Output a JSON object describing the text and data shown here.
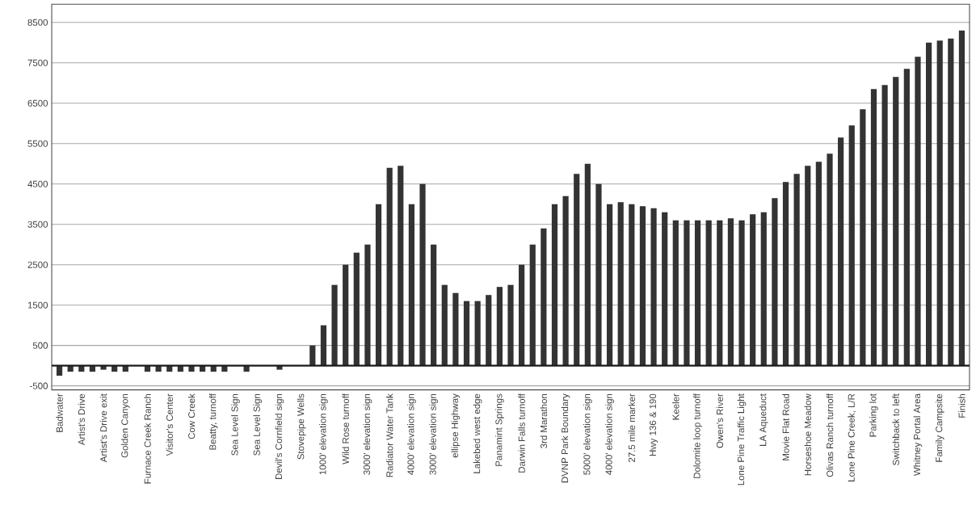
{
  "chart_data": {
    "type": "bar",
    "categories": [
      "Badwater",
      null,
      "Artist's Drive",
      null,
      "Artist's Drive exit",
      null,
      "Golden Canyon",
      null,
      "Furnace Creek Ranch",
      null,
      "Visitor's Center",
      null,
      "Cow Creek",
      null,
      "Beatty, turnoff",
      null,
      "Sea Level Sign",
      null,
      "Sea Level Sign",
      null,
      "Devil's Cornfield sign",
      null,
      "Stovepipe Wells",
      null,
      "1000' elevation sign",
      null,
      "Wild Rose turnoff",
      null,
      "3000' elevation sign",
      null,
      "Radiator Water Tank",
      null,
      "4000' elevation sign",
      null,
      "3000' elevation sign",
      null,
      "ellipse Highway",
      null,
      "Lakebed west edge",
      null,
      "Panamint Springs",
      null,
      "Darwin Falls turnoff",
      null,
      "3rd Marathon",
      null,
      "DVNP Park Boundary",
      null,
      "5000' elevation sign",
      null,
      "4000' elevation sign",
      null,
      "27.5 mile marker",
      null,
      "Hwy 136 & 190",
      null,
      "Keeler",
      null,
      "Dolomite loop turnoff",
      null,
      "Owen's River",
      null,
      "Lone Pine Traffic Light",
      null,
      "LA Aqueduct",
      null,
      "Movie Flat Road",
      null,
      "Horseshoe Meadow",
      null,
      "Olivas Ranch turnoff",
      null,
      "Lone Pine Creek, L/R",
      null,
      "Parking lot",
      null,
      "Switchback to left",
      null,
      "Whitney Portal Area",
      null,
      "Family Campsite",
      null,
      "Finish"
    ],
    "values": [
      -250,
      -150,
      -150,
      -150,
      -100,
      -150,
      -150,
      0,
      -150,
      -150,
      -150,
      -150,
      -150,
      -150,
      -150,
      -150,
      0,
      -150,
      0,
      0,
      -100,
      0,
      0,
      500,
      1000,
      2000,
      2500,
      2800,
      3000,
      4000,
      4900,
      4950,
      4000,
      4500,
      3000,
      2000,
      1800,
      1600,
      1600,
      1750,
      1950,
      2000,
      2500,
      3000,
      3400,
      4000,
      4200,
      4750,
      5000,
      4500,
      4000,
      4050,
      4000,
      3950,
      3900,
      3800,
      3600,
      3600,
      3600,
      3600,
      3600,
      3650,
      3600,
      3750,
      3800,
      4150,
      4550,
      4750,
      4950,
      5050,
      5250,
      5650,
      5950,
      6350,
      6850,
      6950,
      7150,
      7350,
      7650,
      8000,
      8050,
      8100,
      8300
    ],
    "color": "#333333",
    "ylim": [
      -600,
      8950
    ],
    "yticks": [
      {
        "value": -500,
        "label": "-500"
      },
      500,
      1500,
      2500,
      3500,
      4500,
      5500,
      6500,
      7500,
      8500
    ],
    "grid": "y",
    "ref_lines": [
      {
        "axis": "y",
        "value": 0,
        "color": "#1a1a1a"
      }
    ]
  }
}
